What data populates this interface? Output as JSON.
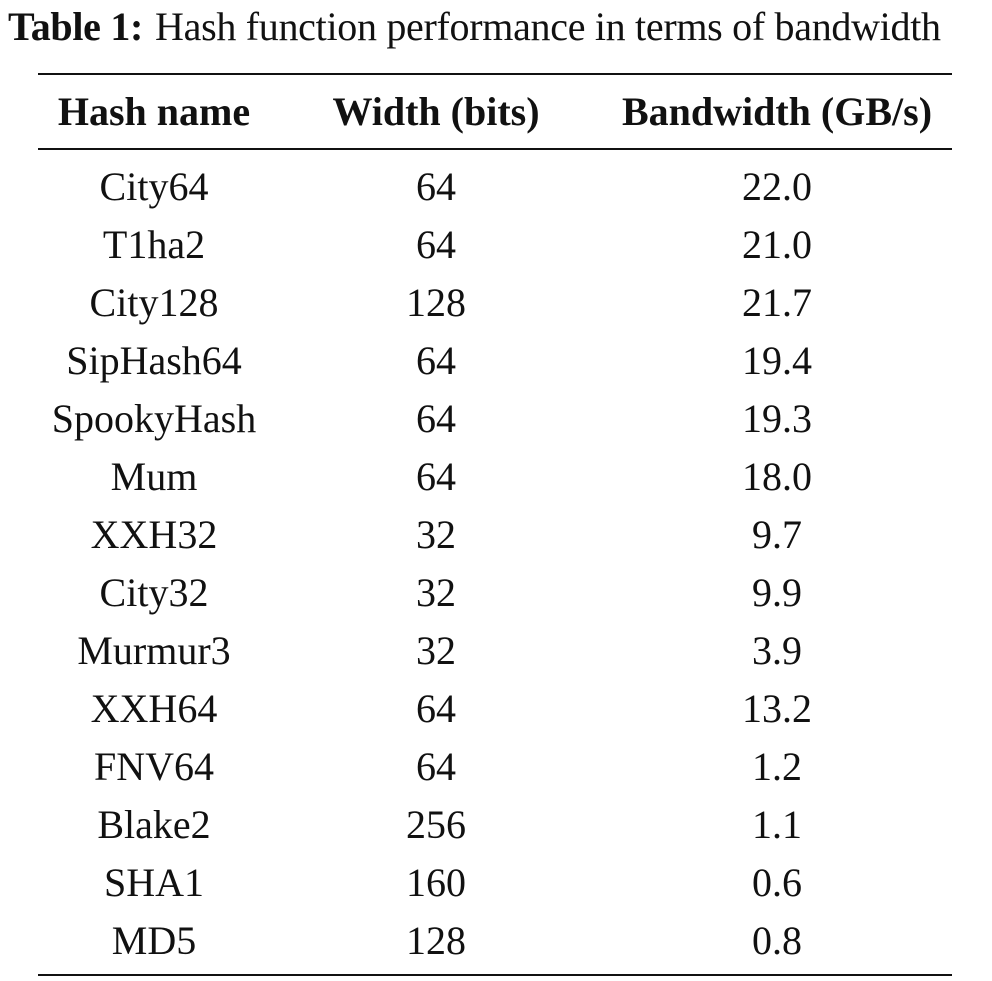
{
  "caption": {
    "label": "Table 1:",
    "text": "Hash function performance in terms of bandwidth"
  },
  "table": {
    "headers": [
      "Hash name",
      "Width (bits)",
      "Bandwidth (GB/s)"
    ],
    "rows": [
      [
        "City64",
        "64",
        "22.0"
      ],
      [
        "T1ha2",
        "64",
        "21.0"
      ],
      [
        "City128",
        "128",
        "21.7"
      ],
      [
        "SipHash64",
        "64",
        "19.4"
      ],
      [
        "SpookyHash",
        "64",
        "19.3"
      ],
      [
        "Mum",
        "64",
        "18.0"
      ],
      [
        "XXH32",
        "32",
        "9.7"
      ],
      [
        "City32",
        "32",
        "9.9"
      ],
      [
        "Murmur3",
        "32",
        "3.9"
      ],
      [
        "XXH64",
        "64",
        "13.2"
      ],
      [
        "FNV64",
        "64",
        "1.2"
      ],
      [
        "Blake2",
        "256",
        "1.1"
      ],
      [
        "SHA1",
        "160",
        "0.6"
      ],
      [
        "MD5",
        "128",
        "0.8"
      ]
    ]
  }
}
